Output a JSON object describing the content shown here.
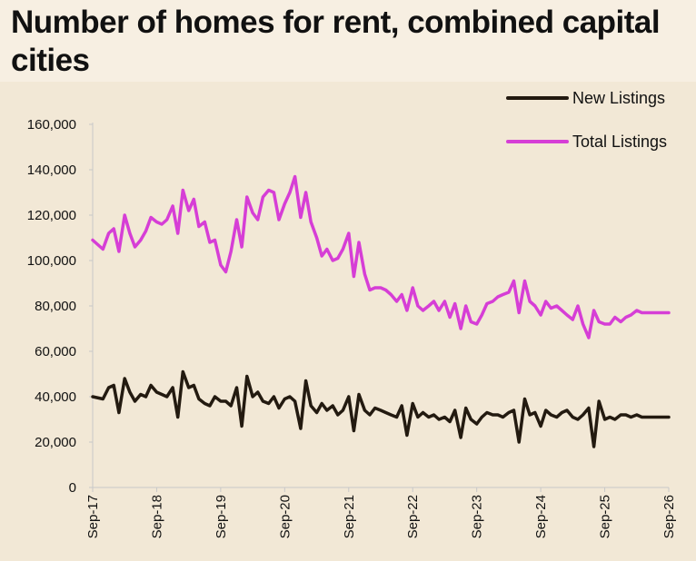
{
  "title": "Number of homes for rent, combined capital cities",
  "colors": {
    "background": "#f7efe2",
    "plot_background": "#f2e8d6",
    "new_listings": "#231a10",
    "total_listings": "#d63ed6",
    "axis": "#c8c8c8",
    "grid": "#d9d9d9"
  },
  "chart_data": {
    "type": "line",
    "title": "Number of homes for rent, combined capital cities",
    "xlabel": "",
    "ylabel": "",
    "ylim": [
      0,
      160000
    ],
    "yticks": [
      0,
      20000,
      40000,
      60000,
      80000,
      100000,
      120000,
      140000,
      160000
    ],
    "ytick_labels": [
      "0",
      "20,000",
      "40,000",
      "60,000",
      "80,000",
      "100,000",
      "120,000",
      "140,000",
      "160,000"
    ],
    "xticks": [
      "Sep-17",
      "Sep-18",
      "Sep-19",
      "Sep-20",
      "Sep-21",
      "Sep-22",
      "Sep-23",
      "Sep-24",
      "Sep-25",
      "Sep-26"
    ],
    "grid": false,
    "legend": "top-right",
    "x": [
      2017.67,
      2017.83,
      2017.92,
      2018.0,
      2018.08,
      2018.17,
      2018.25,
      2018.33,
      2018.42,
      2018.5,
      2018.58,
      2018.67,
      2018.75,
      2018.83,
      2018.92,
      2019.0,
      2019.08,
      2019.17,
      2019.25,
      2019.33,
      2019.42,
      2019.5,
      2019.58,
      2019.67,
      2019.75,
      2019.83,
      2019.92,
      2020.0,
      2020.08,
      2020.17,
      2020.25,
      2020.33,
      2020.42,
      2020.5,
      2020.58,
      2020.67,
      2020.75,
      2020.83,
      2020.92,
      2021.0,
      2021.08,
      2021.17,
      2021.25,
      2021.33,
      2021.42,
      2021.5,
      2021.58,
      2021.67,
      2021.75,
      2021.83,
      2021.92,
      2022.0,
      2022.08,
      2022.17,
      2022.25,
      2022.33,
      2022.42,
      2022.5,
      2022.58,
      2022.67,
      2022.75,
      2022.83,
      2022.92,
      2023.0,
      2023.08,
      2023.17,
      2023.25,
      2023.33,
      2023.42,
      2023.5,
      2023.58,
      2023.67,
      2023.75,
      2023.83,
      2023.92,
      2024.0,
      2024.08,
      2024.17,
      2024.25,
      2024.33,
      2024.42,
      2024.5,
      2024.58,
      2024.67,
      2024.75,
      2024.83,
      2024.92,
      2025.0,
      2025.08,
      2025.17,
      2025.25,
      2025.33,
      2025.42,
      2025.5,
      2025.58,
      2025.67,
      2025.75,
      2025.83,
      2025.92,
      2026.0,
      2026.08,
      2026.17,
      2026.25,
      2026.33,
      2026.42,
      2026.5,
      2026.58,
      2026.67
    ],
    "series": [
      {
        "name": "New Listings",
        "color": "#231a10",
        "values": [
          40000,
          39000,
          44000,
          45000,
          33000,
          48000,
          42000,
          38000,
          41000,
          40000,
          45000,
          42000,
          41000,
          40000,
          44000,
          31000,
          51000,
          44000,
          45000,
          39000,
          37000,
          36000,
          40000,
          38000,
          38000,
          36000,
          44000,
          27000,
          49000,
          40000,
          42000,
          38000,
          37000,
          40000,
          35000,
          39000,
          40000,
          38000,
          26000,
          47000,
          36000,
          33000,
          37000,
          34000,
          36000,
          32000,
          34000,
          40000,
          25000,
          41000,
          34000,
          32000,
          35000,
          34000,
          33000,
          32000,
          31000,
          36000,
          23000,
          37000,
          31000,
          33000,
          31000,
          32000,
          30000,
          31000,
          29000,
          34000,
          22000,
          35000,
          30000,
          28000,
          31000,
          33000,
          32000,
          32000,
          31000,
          33000,
          34000,
          20000,
          39000,
          32000,
          33000,
          27000,
          34000,
          32000,
          31000,
          33000,
          34000,
          31000,
          30000,
          32000,
          35000,
          18000,
          38000,
          30000,
          31000,
          30000,
          32000,
          32000,
          31000,
          32000,
          31000,
          31000,
          31000,
          31000,
          31000,
          31000
        ]
      },
      {
        "name": "Total Listings",
        "color": "#d63ed6",
        "values": [
          109000,
          105000,
          112000,
          114000,
          104000,
          120000,
          112000,
          106000,
          109000,
          113000,
          119000,
          117000,
          116000,
          118000,
          124000,
          112000,
          131000,
          122000,
          127000,
          115000,
          117000,
          108000,
          109000,
          98000,
          95000,
          104000,
          118000,
          106000,
          128000,
          121000,
          118000,
          128000,
          131000,
          130000,
          118000,
          125000,
          130000,
          137000,
          119000,
          130000,
          117000,
          110000,
          102000,
          105000,
          100000,
          101000,
          105000,
          112000,
          93000,
          108000,
          94000,
          87000,
          88000,
          88000,
          87000,
          85000,
          82000,
          85000,
          78000,
          88000,
          80000,
          78000,
          80000,
          82000,
          78000,
          82000,
          75000,
          81000,
          70000,
          80000,
          73000,
          72000,
          76000,
          81000,
          82000,
          84000,
          85000,
          86000,
          91000,
          77000,
          91000,
          82000,
          80000,
          76000,
          82000,
          79000,
          80000,
          78000,
          76000,
          74000,
          80000,
          72000,
          66000,
          78000,
          73000,
          72000,
          72000,
          75000,
          73000,
          75000,
          76000,
          78000,
          77000,
          77000,
          77000,
          77000,
          77000,
          77000
        ]
      }
    ]
  }
}
